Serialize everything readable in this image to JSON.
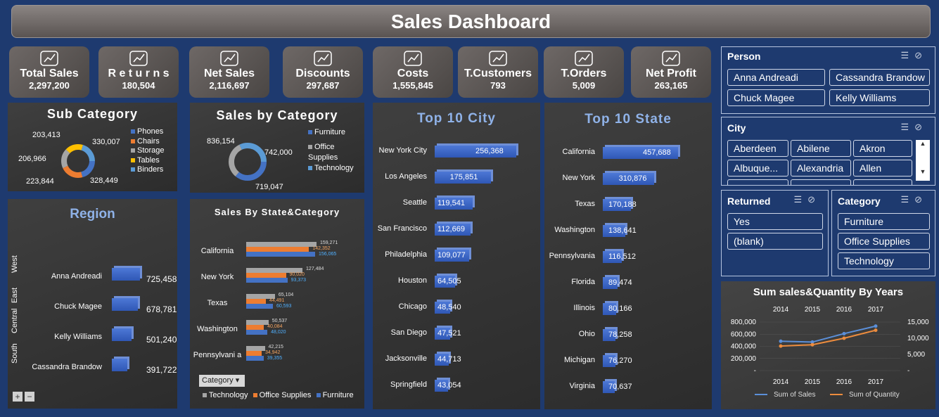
{
  "header": {
    "title": "Sales Dashboard"
  },
  "kpis": [
    {
      "icon": "bar-growth-icon",
      "label": "Total Sales",
      "value": "2,297,200"
    },
    {
      "icon": "returns-icon",
      "label": "R e t u r n s",
      "value": "180,504"
    },
    {
      "icon": "bar-growth-icon",
      "label": "Net Sales",
      "value": "2,116,697"
    },
    {
      "icon": "discount-tag-icon",
      "label": "Discounts",
      "value": "297,687"
    },
    {
      "icon": "money-hand-icon",
      "label": "Costs",
      "value": "1,555,845"
    },
    {
      "icon": "customers-icon",
      "label": "T.Customers",
      "value": "793"
    },
    {
      "icon": "orders-icon",
      "label": "T.Orders",
      "value": "5,009"
    },
    {
      "icon": "cash-icon",
      "label": "Net Profit",
      "value": "263,165"
    }
  ],
  "subcategory": {
    "title": "Sub Category",
    "labels": [
      "203,413",
      "330,007",
      "206,966",
      "223,844",
      "328,449"
    ],
    "legend": [
      "Phones",
      "Chairs",
      "Storage",
      "Tables",
      "Binders"
    ],
    "colors": [
      "#4472c4",
      "#ed7d31",
      "#a5a5a5",
      "#ffc000",
      "#5b9bd5"
    ]
  },
  "sales_by_category": {
    "title": "Sales by Category",
    "labels": [
      "836,154",
      "742,000",
      "719,047"
    ],
    "legend": [
      "Furniture",
      "Office Supplies",
      "Technology"
    ]
  },
  "region": {
    "title": "Region",
    "regions": [
      "West",
      "East",
      "Central",
      "South"
    ],
    "persons": [
      "Anna Andreadi",
      "Chuck Magee",
      "Kelly Williams",
      "Cassandra Brandow"
    ],
    "values": [
      "725,458",
      "678,781",
      "501,240",
      "391,722"
    ],
    "nums": [
      725458,
      678781,
      501240,
      391722
    ],
    "buttons": [
      "+",
      "−"
    ]
  },
  "state_category": {
    "title": "Sales By State&Category",
    "states": [
      "California",
      "New York",
      "Texas",
      "Washington",
      "Pennsylvani a"
    ],
    "technology": [
      "159,271",
      "127,484",
      "65,104",
      "50,537",
      "42,215"
    ],
    "office": [
      "142,352",
      "90,020",
      "44,491",
      "40,084",
      "34,942"
    ],
    "furniture": [
      "156,065",
      "93,373",
      "60,593",
      "48,020",
      "39,355"
    ],
    "tech_n": [
      159271,
      127484,
      65104,
      50537,
      42215
    ],
    "office_n": [
      142352,
      90020,
      44491,
      40084,
      34942
    ],
    "furn_n": [
      156065,
      93373,
      60593,
      48020,
      39355
    ],
    "filter_label": "Category",
    "legend": [
      "Technology",
      "Office Supplies",
      "Furniture"
    ]
  },
  "top_city": {
    "title": "Top 10 City",
    "cities": [
      "New York City",
      "Los Angeles",
      "Seattle",
      "San Francisco",
      "Philadelphia",
      "Houston",
      "Chicago",
      "San Diego",
      "Jacksonville",
      "Springfield"
    ],
    "values": [
      "256,368",
      "175,851",
      "119,541",
      "112,669",
      "109,077",
      "64,505",
      "48,540",
      "47,521",
      "44,713",
      "43,054"
    ],
    "nums": [
      256368,
      175851,
      119541,
      112669,
      109077,
      64505,
      48540,
      47521,
      44713,
      43054
    ]
  },
  "top_state": {
    "title": "Top 10 State",
    "states": [
      "California",
      "New York",
      "Texas",
      "Washington",
      "Pennsylvania",
      "Florida",
      "Illinois",
      "Ohio",
      "Michigan",
      "Virginia"
    ],
    "values": [
      "457,688",
      "310,876",
      "170,188",
      "138,641",
      "116,512",
      "89,474",
      "80,166",
      "78,258",
      "76,270",
      "70,637"
    ],
    "nums": [
      457688,
      310876,
      170188,
      138641,
      116512,
      89474,
      80166,
      78258,
      76270,
      70637
    ]
  },
  "slicers": {
    "person": {
      "title": "Person",
      "items": [
        "Anna Andreadi",
        "Cassandra Brandow",
        "Chuck Magee",
        "Kelly Williams"
      ]
    },
    "city": {
      "title": "City",
      "items": [
        "Aberdeen",
        "Abilene",
        "Akron",
        "Albuque...",
        "Alexandria",
        "Allen"
      ]
    },
    "returned": {
      "title": "Returned",
      "items": [
        "Yes",
        "(blank)"
      ]
    },
    "category": {
      "title": "Category",
      "items": [
        "Furniture",
        "Office Supplies",
        "Technology"
      ]
    }
  },
  "years_chart": {
    "title": "Sum sales&Quantity By Years",
    "years": [
      "2014",
      "2015",
      "2016",
      "2017"
    ],
    "left_ticks": [
      "800,000",
      "600,000",
      "400,000",
      "200,000",
      "-"
    ],
    "right_ticks": [
      "15,000",
      "10,000",
      "5,000",
      "-"
    ],
    "sales": [
      484247,
      470533,
      609206,
      733215
    ],
    "quantity": [
      7581,
      8000,
      10000,
      12476
    ],
    "legend": [
      "Sum of Sales",
      "Sum of Quantity"
    ]
  }
}
